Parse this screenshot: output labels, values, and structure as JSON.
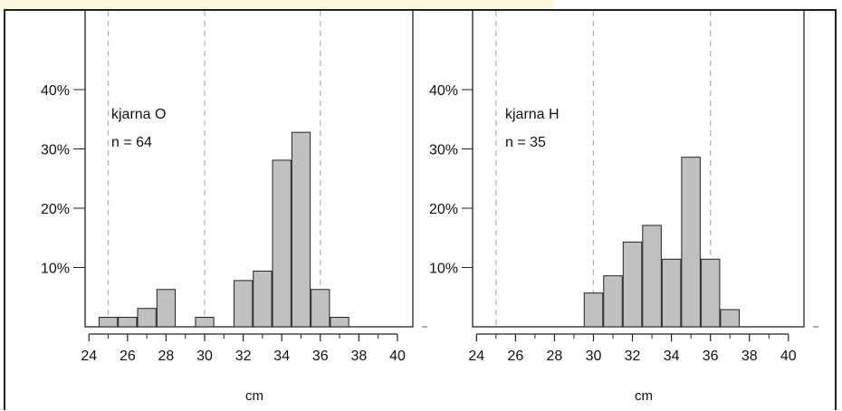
{
  "chart_data": [
    {
      "type": "bar",
      "annotation_label": "kjarna O",
      "n_label": "n =  64",
      "xlabel": "cm",
      "ylabel": "",
      "x_ticks": [
        "24",
        "26",
        "28",
        "30",
        "32",
        "34",
        "36",
        "38",
        "40"
      ],
      "y_ticks": [
        "10%",
        "20%",
        "30%",
        "40%"
      ],
      "xlim": [
        23.8,
        40.8
      ],
      "ylim": [
        0,
        0.4
      ],
      "reference_lines": [
        25,
        30,
        36
      ],
      "bins": [
        {
          "x": 25,
          "value": 0.016
        },
        {
          "x": 26,
          "value": 0.016
        },
        {
          "x": 27,
          "value": 0.031
        },
        {
          "x": 28,
          "value": 0.063
        },
        {
          "x": 30,
          "value": 0.016
        },
        {
          "x": 32,
          "value": 0.078
        },
        {
          "x": 33,
          "value": 0.094
        },
        {
          "x": 34,
          "value": 0.281
        },
        {
          "x": 35,
          "value": 0.328
        },
        {
          "x": 36,
          "value": 0.063
        },
        {
          "x": 37,
          "value": 0.016
        }
      ],
      "grid": false
    },
    {
      "type": "bar",
      "annotation_label": "kjarna H",
      "n_label": "n =  35",
      "xlabel": "cm",
      "ylabel": "",
      "x_ticks": [
        "24",
        "26",
        "28",
        "30",
        "32",
        "34",
        "36",
        "38",
        "40"
      ],
      "y_ticks": [
        "10%",
        "20%",
        "30%",
        "40%"
      ],
      "xlim": [
        23.8,
        40.8
      ],
      "ylim": [
        0,
        0.4
      ],
      "reference_lines": [
        25,
        30,
        36
      ],
      "bins": [
        {
          "x": 30,
          "value": 0.057
        },
        {
          "x": 31,
          "value": 0.086
        },
        {
          "x": 32,
          "value": 0.143
        },
        {
          "x": 33,
          "value": 0.171
        },
        {
          "x": 34,
          "value": 0.114
        },
        {
          "x": 35,
          "value": 0.286
        },
        {
          "x": 36,
          "value": 0.114
        },
        {
          "x": 37,
          "value": 0.029
        }
      ],
      "grid": false
    }
  ],
  "colors": {
    "bar_fill": "#c0c0c0",
    "bar_stroke": "#222222",
    "ref_line": "#b0b0b0",
    "top_highlight": "#fbf8dc"
  }
}
